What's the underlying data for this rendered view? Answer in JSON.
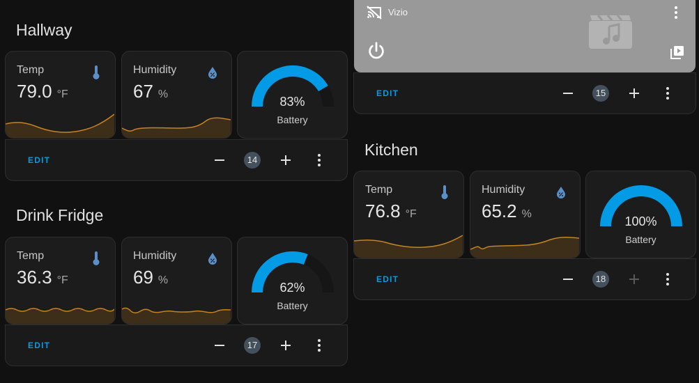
{
  "colors": {
    "accent": "#039be5",
    "gauge_track": "#161616",
    "spark_line": "#c7831f",
    "spark_fill": "#3d2e1a",
    "icon_blue": "#5a8fc8"
  },
  "hallway": {
    "title": "Hallway",
    "temp": {
      "label": "Temp",
      "value": "79.0",
      "unit": "°F",
      "icon": "thermometer-icon"
    },
    "humidity": {
      "label": "Humidity",
      "value": "67",
      "unit": "%",
      "icon": "water-percent-icon"
    },
    "battery": {
      "value": "83%",
      "label": "Battery",
      "level": 0.83
    },
    "controls": {
      "edit": "EDIT",
      "count": "14"
    }
  },
  "drink_fridge": {
    "title": "Drink Fridge",
    "temp": {
      "label": "Temp",
      "value": "36.3",
      "unit": "°F",
      "icon": "thermometer-icon"
    },
    "humidity": {
      "label": "Humidity",
      "value": "69",
      "unit": "%",
      "icon": "water-percent-icon"
    },
    "battery": {
      "value": "62%",
      "label": "Battery",
      "level": 0.62
    },
    "controls": {
      "edit": "EDIT",
      "count": "17"
    }
  },
  "media": {
    "name": "Vizio",
    "icons": [
      "cast-off-icon",
      "more-vert-icon",
      "movie-music-icon",
      "power-icon",
      "play-box-icon"
    ],
    "controls": {
      "edit": "EDIT",
      "count": "15"
    }
  },
  "kitchen": {
    "title": "Kitchen",
    "temp": {
      "label": "Temp",
      "value": "76.8",
      "unit": "°F",
      "icon": "thermometer-icon"
    },
    "humidity": {
      "label": "Humidity",
      "value": "65.2",
      "unit": "%",
      "icon": "water-percent-icon"
    },
    "battery": {
      "value": "100%",
      "label": "Battery",
      "level": 1.0
    },
    "controls": {
      "edit": "EDIT",
      "count": "18"
    }
  }
}
